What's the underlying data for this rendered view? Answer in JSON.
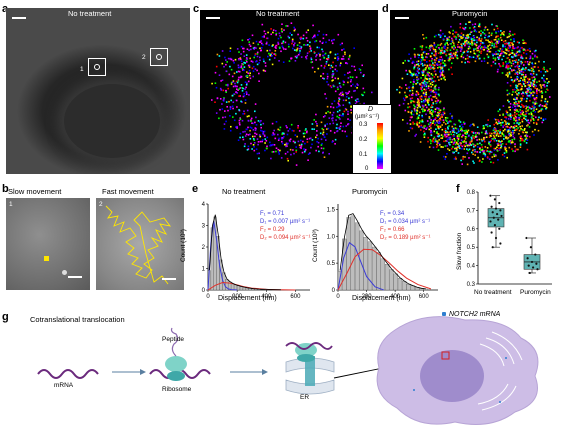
{
  "panels": {
    "a": {
      "label": "a",
      "title": "No treatment",
      "roi1": "1",
      "roi2": "2"
    },
    "b": {
      "label": "b",
      "title_left": "Slow movement",
      "title_right": "Fast movement",
      "num_left": "1",
      "num_right": "2"
    },
    "c": {
      "label": "c",
      "title": "No treatment"
    },
    "d": {
      "label": "d",
      "title": "Puromycin"
    },
    "colorbar": {
      "title": "D",
      "unit": "(µm² s⁻¹)",
      "ticks": [
        "0.3",
        "0.2",
        "0.1",
        "0"
      ]
    },
    "e": {
      "label": "e",
      "left": {
        "title": "No treatment",
        "F1": "F₁ = 0.71",
        "D1": "D₁ = 0.007 µm² s⁻¹",
        "F2": "F₂ = 0.29",
        "D2": "D₂ = 0.094 µm² s⁻¹"
      },
      "right": {
        "title": "Puromycin",
        "F1": "F₁ = 0.34",
        "D1": "D₁ = 0.034 µm² s⁻¹",
        "F2": "F₂ = 0.66",
        "D2": "D₂ = 0.189 µm² s⁻¹"
      },
      "ylabel": "Count (10³)",
      "xlabel": "Displacement (nm)"
    },
    "f": {
      "label": "f",
      "ylabel": "Slow fraction",
      "xticks": [
        "No treatment",
        "Puromycin"
      ]
    },
    "g": {
      "label": "g",
      "title": "Cotranslational translocation",
      "legend": "NOTCH2 mRNA",
      "mrna": "mRNA",
      "peptide": "Peptide",
      "ribosome": "Ribosome",
      "er": "ER"
    }
  },
  "colors": {
    "blue": "#3b3bd6",
    "red": "#e0302a",
    "box": "#5fb3b3",
    "purple": "#7a3a8c"
  },
  "chart_data": [
    {
      "type": "bar",
      "title": "No treatment",
      "xlabel": "Displacement (nm)",
      "ylabel": "Count (10³)",
      "xlim": [
        0,
        700
      ],
      "ylim": [
        0,
        4
      ],
      "yticks": [
        0,
        1,
        2,
        3,
        4
      ],
      "xticks": [
        0,
        200,
        400,
        600
      ],
      "x": [
        10,
        30,
        50,
        70,
        90,
        110,
        130,
        150,
        170,
        190,
        210,
        230,
        250,
        270,
        290,
        310,
        330,
        350,
        400,
        450,
        500
      ],
      "values": [
        0.9,
        2.9,
        3.4,
        2.5,
        1.4,
        0.8,
        0.5,
        0.38,
        0.3,
        0.24,
        0.2,
        0.16,
        0.13,
        0.1,
        0.08,
        0.06,
        0.05,
        0.04,
        0.03,
        0.02,
        0.01
      ],
      "series": [
        {
          "name": "",
          "x": [
            0,
            20,
            40,
            60,
            80,
            100,
            120,
            140,
            160,
            200
          ],
          "values": [
            0,
            2.2,
            3.2,
            2.3,
            1.1,
            0.45,
            0.15,
            0.05,
            0.02,
            0
          ]
        },
        {
          "name": "",
          "x": [
            0,
            50,
            100,
            150,
            200,
            250,
            300,
            400,
            500,
            600
          ],
          "values": [
            0,
            0.22,
            0.35,
            0.32,
            0.24,
            0.15,
            0.09,
            0.03,
            0.01,
            0
          ]
        }
      ]
    },
    {
      "type": "bar",
      "title": "Puromycin",
      "xlabel": "Displacement (nm)",
      "ylabel": "Count (10³)",
      "xlim": [
        0,
        700
      ],
      "ylim": [
        0,
        1.6
      ],
      "yticks": [
        0,
        0.5,
        1.0,
        1.5
      ],
      "xticks": [
        0,
        200,
        400,
        600
      ],
      "x": [
        15,
        45,
        75,
        105,
        135,
        165,
        195,
        225,
        255,
        285,
        315,
        345,
        375,
        405,
        435,
        465,
        495,
        525,
        555,
        585,
        615
      ],
      "values": [
        0.35,
        0.95,
        1.35,
        1.38,
        1.25,
        1.1,
        0.98,
        0.9,
        0.8,
        0.7,
        0.58,
        0.48,
        0.38,
        0.3,
        0.22,
        0.16,
        0.11,
        0.08,
        0.05,
        0.03,
        0.02
      ],
      "series": [
        {
          "name": "",
          "x": [
            0,
            40,
            80,
            120,
            160,
            200,
            260,
            320
          ],
          "values": [
            0,
            0.6,
            0.88,
            0.8,
            0.52,
            0.25,
            0.06,
            0
          ]
        },
        {
          "name": "",
          "x": [
            0,
            60,
            120,
            180,
            240,
            300,
            360,
            420,
            480,
            560,
            650
          ],
          "values": [
            0,
            0.3,
            0.62,
            0.76,
            0.75,
            0.64,
            0.5,
            0.35,
            0.22,
            0.1,
            0.02
          ]
        }
      ]
    },
    {
      "type": "box",
      "ylabel": "Slow fraction",
      "categories": [
        "No treatment",
        "Puromycin"
      ],
      "ylim": [
        0.3,
        0.8
      ],
      "yticks": [
        0.3,
        0.4,
        0.5,
        0.6,
        0.7,
        0.8
      ],
      "boxes": [
        {
          "min": 0.5,
          "q1": 0.61,
          "median": 0.66,
          "q3": 0.71,
          "max": 0.78
        },
        {
          "min": 0.36,
          "q1": 0.38,
          "median": 0.42,
          "q3": 0.46,
          "max": 0.55
        }
      ],
      "points": [
        [
          0.78,
          0.76,
          0.74,
          0.72,
          0.71,
          0.7,
          0.69,
          0.68,
          0.67,
          0.66,
          0.65,
          0.64,
          0.62,
          0.6,
          0.58,
          0.55,
          0.52,
          0.5
        ],
        [
          0.55,
          0.5,
          0.46,
          0.44,
          0.42,
          0.41,
          0.4,
          0.39,
          0.38,
          0.36
        ]
      ]
    }
  ]
}
